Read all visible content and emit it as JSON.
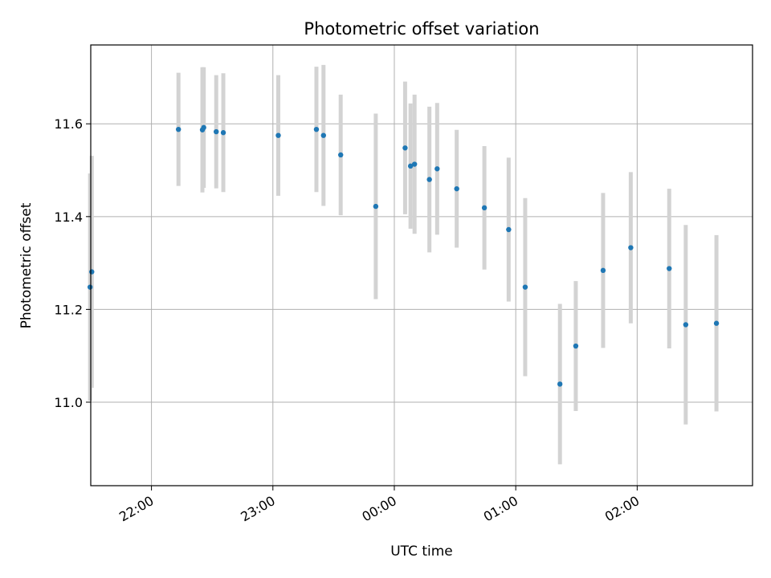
{
  "chart_data": {
    "type": "scatter",
    "title": "Photometric offset variation",
    "xlabel": "UTC time",
    "ylabel": "Photometric offset",
    "xlim": [
      "21:30",
      "02:57"
    ],
    "ylim": [
      10.82,
      11.77
    ],
    "grid": true,
    "x_tick_labels": [
      "22:00",
      "23:00",
      "00:00",
      "01:00",
      "02:00"
    ],
    "y_ticks": [
      11.0,
      11.2,
      11.4,
      11.6
    ],
    "y_tick_labels": [
      "11.0",
      "11.2",
      "11.4",
      "11.6"
    ],
    "colors": {
      "point": "#1f77b4",
      "error_bar": "#d3d3d3",
      "grid": "#b0b0b0"
    },
    "series": [
      {
        "points": [
          {
            "x": "21:29:40",
            "y": 11.248,
            "yerr": 0.245
          },
          {
            "x": "21:30:30",
            "y": 11.281,
            "yerr": 0.25
          },
          {
            "x": "22:13:20",
            "y": 11.588,
            "yerr": 0.122
          },
          {
            "x": "22:25:10",
            "y": 11.587,
            "yerr": 0.135
          },
          {
            "x": "22:25:50",
            "y": 11.592,
            "yerr": 0.13
          },
          {
            "x": "22:32:00",
            "y": 11.583,
            "yerr": 0.122
          },
          {
            "x": "22:35:30",
            "y": 11.581,
            "yerr": 0.128
          },
          {
            "x": "23:02:40",
            "y": 11.575,
            "yerr": 0.13
          },
          {
            "x": "23:21:30",
            "y": 11.588,
            "yerr": 0.135
          },
          {
            "x": "23:25:00",
            "y": 11.575,
            "yerr": 0.152
          },
          {
            "x": "23:33:30",
            "y": 11.533,
            "yerr": 0.13
          },
          {
            "x": "23:50:50",
            "y": 11.422,
            "yerr": 0.2
          },
          {
            "x": "00:05:20",
            "y": 11.548,
            "yerr": 0.143
          },
          {
            "x": "00:08:00",
            "y": 11.509,
            "yerr": 0.135
          },
          {
            "x": "00:10:00",
            "y": 11.513,
            "yerr": 0.15
          },
          {
            "x": "00:17:20",
            "y": 11.48,
            "yerr": 0.157
          },
          {
            "x": "00:21:10",
            "y": 11.503,
            "yerr": 0.142
          },
          {
            "x": "00:30:50",
            "y": 11.46,
            "yerr": 0.127
          },
          {
            "x": "00:44:30",
            "y": 11.419,
            "yerr": 0.133
          },
          {
            "x": "00:56:30",
            "y": 11.372,
            "yerr": 0.155
          },
          {
            "x": "01:04:40",
            "y": 11.248,
            "yerr": 0.192
          },
          {
            "x": "01:21:50",
            "y": 11.039,
            "yerr": 0.173
          },
          {
            "x": "01:29:40",
            "y": 11.121,
            "yerr": 0.14
          },
          {
            "x": "01:43:10",
            "y": 11.284,
            "yerr": 0.167
          },
          {
            "x": "01:56:50",
            "y": 11.333,
            "yerr": 0.163
          },
          {
            "x": "02:15:50",
            "y": 11.288,
            "yerr": 0.172
          },
          {
            "x": "02:24:00",
            "y": 11.167,
            "yerr": 0.215
          },
          {
            "x": "02:39:10",
            "y": 11.17,
            "yerr": 0.19
          }
        ]
      }
    ]
  }
}
